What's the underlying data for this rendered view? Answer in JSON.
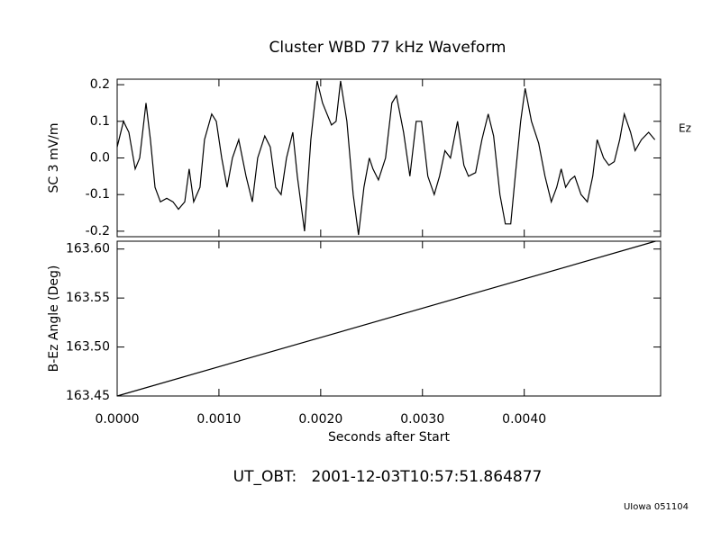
{
  "chart_data": [
    {
      "type": "line",
      "title": "Cluster WBD 77 kHz Waveform",
      "y_label": "SC 3 mV/m",
      "x": [
        0,
        6.2e-05,
        0.000115,
        0.000177,
        0.000221,
        0.000283,
        0.000327,
        0.000372,
        0.000425,
        0.000487,
        0.000549,
        0.000602,
        0.000664,
        0.000708,
        0.000752,
        0.000814,
        0.000858,
        0.000929,
        0.000974,
        0.001027,
        0.00108,
        0.001133,
        0.001195,
        0.001266,
        0.001328,
        0.001381,
        0.001451,
        0.001505,
        0.001558,
        0.001611,
        0.001664,
        0.001726,
        0.00177,
        0.001841,
        0.001903,
        0.001965,
        0.002018,
        0.002106,
        0.002151,
        0.002195,
        0.002257,
        0.002319,
        0.002372,
        0.002425,
        0.002478,
        0.002513,
        0.002567,
        0.002637,
        0.002699,
        0.002744,
        0.002814,
        0.002876,
        0.002938,
        0.002991,
        0.003053,
        0.003115,
        0.003168,
        0.003221,
        0.003275,
        0.003345,
        0.003407,
        0.003452,
        0.003522,
        0.003584,
        0.003646,
        0.003699,
        0.003761,
        0.003814,
        0.003867,
        0.003912,
        0.003965,
        0.004009,
        0.004071,
        0.004142,
        0.004204,
        0.004266,
        0.004319,
        0.004363,
        0.004407,
        0.004452,
        0.004496,
        0.004558,
        0.00462,
        0.004673,
        0.004717,
        0.004779,
        0.004832,
        0.004885,
        0.004938,
        0.004983,
        0.005045,
        0.005089,
        0.005151,
        0.005222,
        0.005283
      ],
      "series": [
        {
          "name": "Ez",
          "color": "#000000",
          "values": [
            0.03,
            0.1,
            0.07,
            -0.03,
            0,
            0.15,
            0.05,
            -0.08,
            -0.12,
            -0.11,
            -0.12,
            -0.14,
            -0.12,
            -0.03,
            -0.12,
            -0.08,
            0.05,
            0.12,
            0.1,
            0,
            -0.08,
            0,
            0.05,
            -0.05,
            -0.12,
            0,
            0.06,
            0.03,
            -0.08,
            -0.1,
            0,
            0.07,
            -0.05,
            -0.2,
            0.05,
            0.21,
            0.15,
            0.09,
            0.1,
            0.21,
            0.1,
            -0.1,
            -0.21,
            -0.08,
            0,
            -0.03,
            -0.06,
            0,
            0.15,
            0.17,
            0.07,
            -0.05,
            0.1,
            0.1,
            -0.05,
            -0.1,
            -0.05,
            0.02,
            0,
            0.1,
            -0.02,
            -0.05,
            -0.04,
            0.05,
            0.12,
            0.06,
            -0.1,
            -0.18,
            -0.18,
            -0.05,
            0.1,
            0.19,
            0.1,
            0.04,
            -0.05,
            -0.12,
            -0.08,
            -0.03,
            -0.08,
            -0.06,
            -0.05,
            -0.1,
            -0.12,
            -0.05,
            0.05,
            0,
            -0.02,
            -0.01,
            0.05,
            0.12,
            0.07,
            0.02,
            0.05,
            0.07,
            0.05
          ]
        }
      ],
      "xlim": [
        0,
        0.00534
      ],
      "xticks": [
        0,
        0.001,
        0.002,
        0.003,
        0.004
      ],
      "ylim": [
        -0.215,
        0.215
      ],
      "yticks": [
        -0.2,
        -0.1,
        {
          "value": 0,
          "label": "0.0"
        },
        0.1,
        0.2
      ]
    },
    {
      "type": "line",
      "y_label": "B-Ez Angle (Deg)",
      "x_label": "Seconds after Start",
      "x": [
        0,
        0.00529
      ],
      "values": [
        163.45,
        163.608
      ],
      "color": "#000000",
      "xlim": [
        0,
        0.00534
      ],
      "xticks": [
        {
          "value": 0,
          "label": "0.0000"
        },
        {
          "value": 0.001,
          "label": "0.0010"
        },
        {
          "value": 0.002,
          "label": "0.0020"
        },
        {
          "value": 0.003,
          "label": "0.0030"
        },
        {
          "value": 0.004,
          "label": "0.0040"
        }
      ],
      "ylim": [
        163.45,
        163.608
      ],
      "yticks": [
        {
          "value": 163.45,
          "label": "163.45"
        },
        {
          "value": 163.5,
          "label": "163.50"
        },
        163.55,
        {
          "value": 163.6,
          "label": "163.60"
        }
      ]
    }
  ],
  "timestamp": "UT_OBT:   2001-12-03T10:57:51.864877",
  "credit": "UIowa 051104"
}
